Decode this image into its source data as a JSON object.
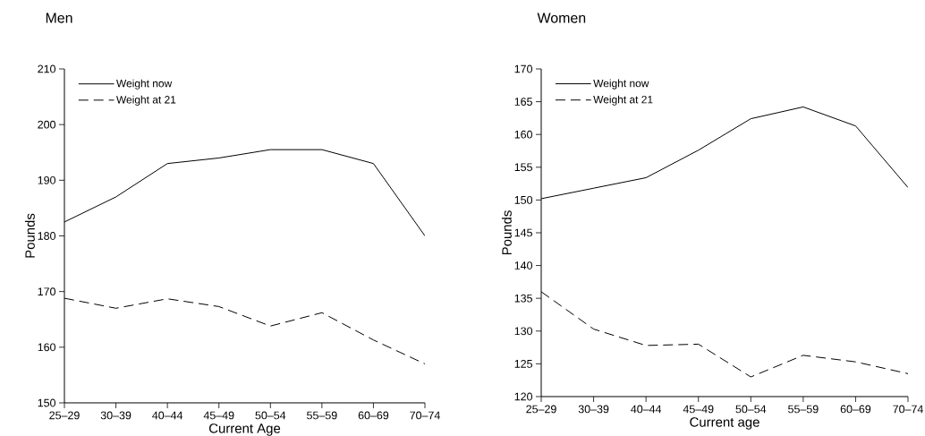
{
  "chart_data": [
    {
      "type": "line",
      "title": "Men",
      "xlabel": "Current Age",
      "ylabel": "Pounds",
      "categories": [
        "25–29",
        "30–39",
        "40–44",
        "45–49",
        "50–54",
        "55–59",
        "60–69",
        "70–74"
      ],
      "ylim": [
        150,
        210
      ],
      "yticks": [
        150,
        160,
        170,
        180,
        190,
        200,
        210
      ],
      "legend": "top left",
      "grid": false,
      "series": [
        {
          "name": "Weight now",
          "color": "#000000",
          "line_style": "solid",
          "values": [
            182.5,
            187,
            193,
            194,
            195.5,
            195.5,
            193,
            180
          ]
        },
        {
          "name": "Weight at 21",
          "color": "#000000",
          "line_style": "dashed",
          "values": [
            168.8,
            167,
            168.7,
            167.3,
            163.8,
            166.2,
            161.3,
            157
          ]
        }
      ]
    },
    {
      "type": "line",
      "title": "Women",
      "xlabel": "Current age",
      "ylabel": "Pounds",
      "categories": [
        "25–29",
        "30–39",
        "40–44",
        "45–49",
        "50–54",
        "55–59",
        "60–69",
        "70–74"
      ],
      "ylim": [
        120,
        170
      ],
      "yticks": [
        120,
        125,
        130,
        135,
        140,
        145,
        150,
        155,
        160,
        165,
        170
      ],
      "legend": "top left",
      "grid": false,
      "series": [
        {
          "name": "Weight now",
          "color": "#000000",
          "line_style": "solid",
          "values": [
            150.2,
            151.8,
            153.4,
            157.6,
            162.4,
            164.2,
            161.3,
            151.9
          ]
        },
        {
          "name": "Weight at 21",
          "color": "#000000",
          "line_style": "dashed",
          "values": [
            136,
            130.3,
            127.8,
            128,
            123,
            126.3,
            125.3,
            123.5
          ]
        }
      ]
    }
  ]
}
